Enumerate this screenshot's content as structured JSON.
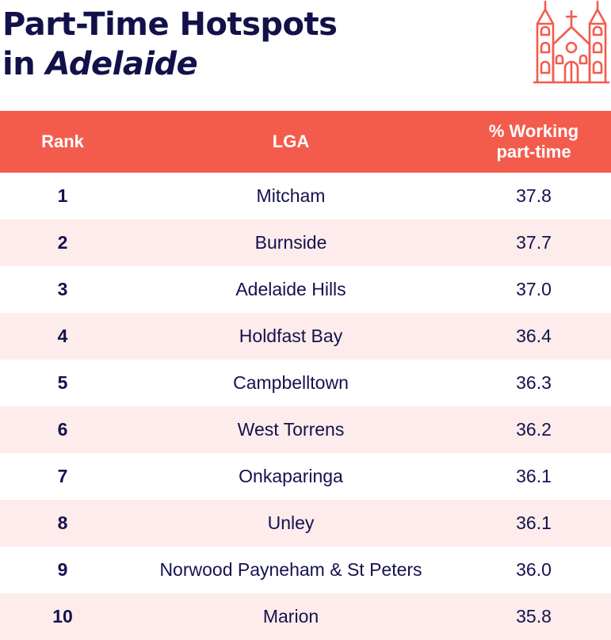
{
  "title": {
    "line1": "Part-Time Hotspots",
    "line2_prefix": "in ",
    "line2_italic": "Adelaide"
  },
  "icon": "church-icon",
  "colors": {
    "header_bg": "#f35c4d",
    "alt_row_bg": "#fdeceb",
    "text": "#14124e",
    "title": "#12114a",
    "icon": "#f35c4d"
  },
  "chart_data": {
    "type": "table",
    "title": "Part-Time Hotspots in Adelaide",
    "columns": {
      "rank": "Rank",
      "lga": "LGA",
      "pct_line1": "% Working",
      "pct_line2": "part-time"
    },
    "rows": [
      {
        "rank": "1",
        "lga": "Mitcham",
        "pct": "37.8"
      },
      {
        "rank": "2",
        "lga": "Burnside",
        "pct": "37.7"
      },
      {
        "rank": "3",
        "lga": "Adelaide Hills",
        "pct": "37.0"
      },
      {
        "rank": "4",
        "lga": "Holdfast Bay",
        "pct": "36.4"
      },
      {
        "rank": "5",
        "lga": "Campbelltown",
        "pct": "36.3"
      },
      {
        "rank": "6",
        "lga": "West Torrens",
        "pct": "36.2"
      },
      {
        "rank": "7",
        "lga": "Onkaparinga",
        "pct": "36.1"
      },
      {
        "rank": "8",
        "lga": "Unley",
        "pct": "36.1"
      },
      {
        "rank": "9",
        "lga": "Norwood Payneham & St Peters",
        "pct": "36.0"
      },
      {
        "rank": "10",
        "lga": "Marion",
        "pct": "35.8"
      }
    ]
  }
}
